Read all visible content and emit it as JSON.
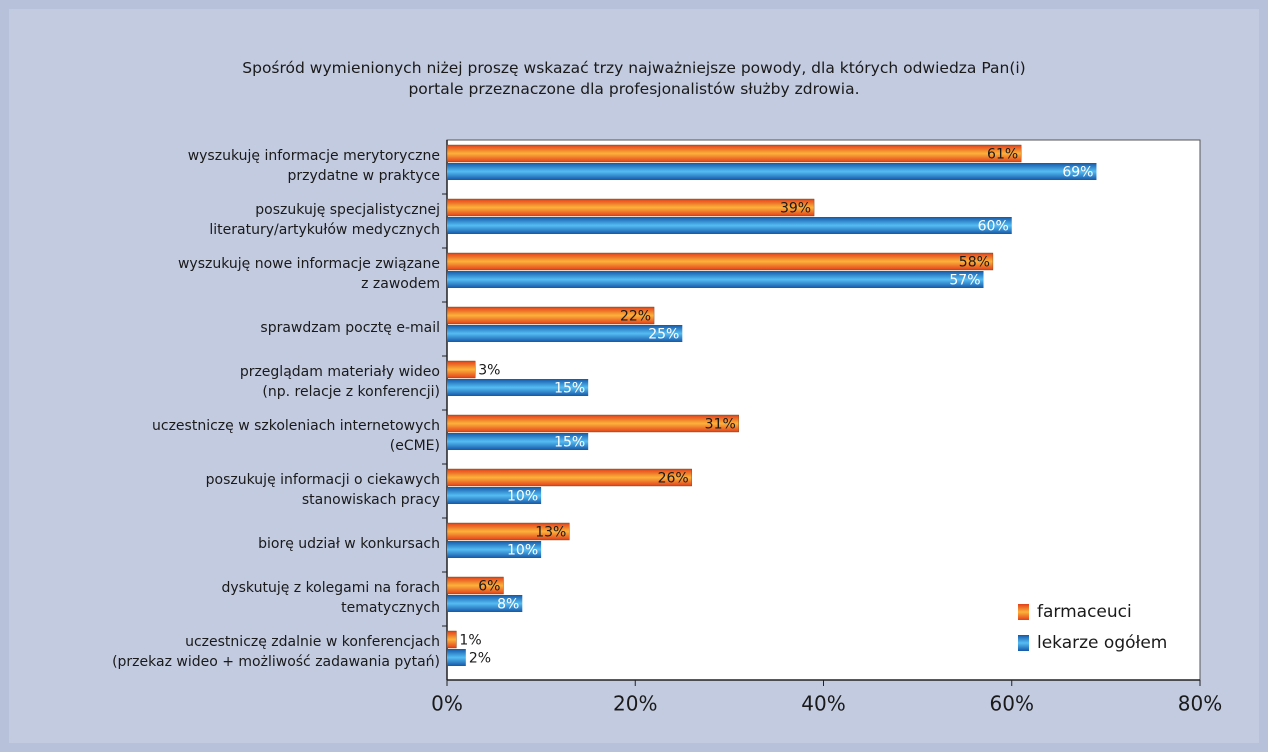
{
  "chart_data": {
    "type": "bar",
    "orientation": "horizontal",
    "title": "Spośród wymienionych niżej proszę wskazać trzy najważniejsze powody, dla których odwiedza Pan(i)\nportale przeznaczone dla profesjonalistów służby zdrowia.",
    "categories": [
      "wyszukuję informacje merytoryczne\nprzydatne w praktyce",
      "poszukuję specjalistycznej\nliteratury/artykułów medycznych",
      "wyszukuję nowe informacje związane\nz zawodem",
      "sprawdzam pocztę e-mail",
      "przeglądam materiały wideo\n(np. relacje z konferencji)",
      "uczestniczę w szkoleniach internetowych\n(eCME)",
      "poszukuję informacji o ciekawych\nstanowiskach pracy",
      "biorę udział w konkursach",
      "dyskutuję z kolegami na forach\ntematycznych",
      "uczestniczę zdalnie w konferencjach\n(przekaz wideo + możliwość zadawania pytań)"
    ],
    "series": [
      {
        "name": "farmaceuci",
        "color": "#f06a14",
        "values": [
          61,
          39,
          58,
          22,
          3,
          31,
          26,
          13,
          6,
          1
        ],
        "value_labels": [
          "61%",
          "39%",
          "58%",
          "22%",
          "3%",
          "31%",
          "26%",
          "13%",
          "6%",
          "1%"
        ]
      },
      {
        "name": "lekarze ogółem",
        "color": "#2a7fd0",
        "values": [
          69,
          60,
          57,
          25,
          15,
          15,
          10,
          10,
          8,
          2
        ],
        "value_labels": [
          "69%",
          "60%",
          "57%",
          "25%",
          "15%",
          "15%",
          "10%",
          "10%",
          "8%",
          "2%"
        ]
      }
    ],
    "xlim": [
      0,
      80
    ],
    "xticks": [
      {
        "value": 0,
        "label": "0%"
      },
      {
        "value": 20,
        "label": "20%"
      },
      {
        "value": 40,
        "label": "40%"
      },
      {
        "value": 60,
        "label": "60%"
      },
      {
        "value": 80,
        "label": "80%"
      }
    ],
    "legend": "lower right",
    "grid": false
  }
}
